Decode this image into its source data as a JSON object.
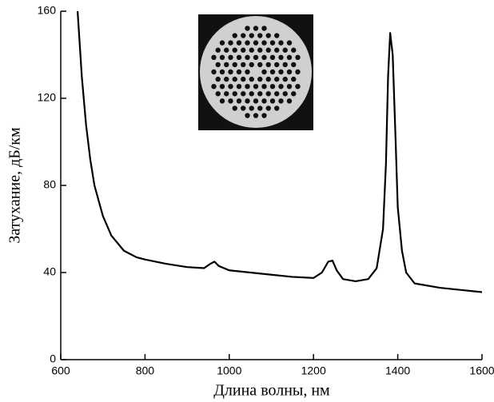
{
  "chart_data": {
    "type": "line",
    "xlabel": "Длина волны, нм",
    "ylabel": "Затухание, дБ/км",
    "x": [
      640,
      650,
      660,
      670,
      680,
      700,
      720,
      750,
      780,
      800,
      850,
      900,
      940,
      955,
      965,
      975,
      1000,
      1050,
      1100,
      1150,
      1200,
      1220,
      1235,
      1245,
      1255,
      1270,
      1300,
      1330,
      1350,
      1365,
      1372,
      1377,
      1382,
      1388,
      1395,
      1400,
      1410,
      1420,
      1440,
      1500,
      1550,
      1600
    ],
    "values": [
      160,
      130,
      108,
      92,
      80,
      66,
      57,
      50,
      47,
      46,
      44,
      42.5,
      42,
      44,
      45,
      43,
      41,
      40,
      39,
      38,
      37.5,
      40,
      45,
      45.5,
      41,
      37,
      36,
      37,
      42,
      60,
      90,
      130,
      150,
      140,
      100,
      70,
      50,
      40,
      35,
      33,
      32,
      31
    ],
    "color": "#000000",
    "xlim": [
      600,
      1600
    ],
    "ylim": [
      0,
      160
    ],
    "xticks": [
      600,
      800,
      1000,
      1200,
      1400,
      1600
    ],
    "yticks": [
      0,
      40,
      80,
      120,
      160
    ]
  }
}
